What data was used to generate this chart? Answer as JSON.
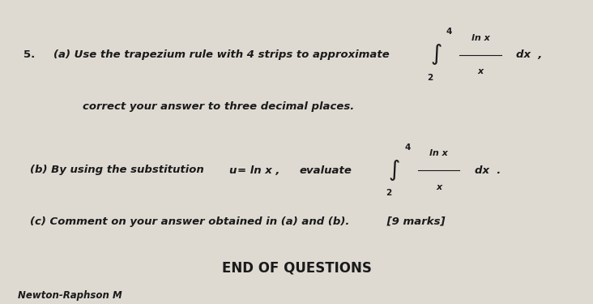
{
  "bg_color": "#c8c4b8",
  "paper_color": "#dedad2",
  "text_color": "#1a1a1a",
  "title_num": "5.",
  "line_a_prefix": "(a) Use the trapezium rule with 4 strips to approximate",
  "line_a_suffix": "dx  ,",
  "integral_a_upper": "4",
  "integral_a_lower": "2",
  "integral_a_numerator": "ln x",
  "integral_a_denominator": "x",
  "line_a2": "correct your answer to three decimal places.",
  "line_b_prefix": "(b) By using the substitution",
  "line_b_sub": "u",
  "line_b_eq": "= ln x ,",
  "line_b_eval": "evaluate",
  "integral_b_upper": "4",
  "integral_b_lower": "2",
  "integral_b_numerator": "ln x",
  "integral_b_denominator": "x",
  "line_b_suffix": "dx  .",
  "line_c": "(c) Comment on your answer obtained in (a) and (b).          [9 marks]",
  "end_text": "END OF QUESTIONS",
  "footer_text": "Newton-Raphson M"
}
